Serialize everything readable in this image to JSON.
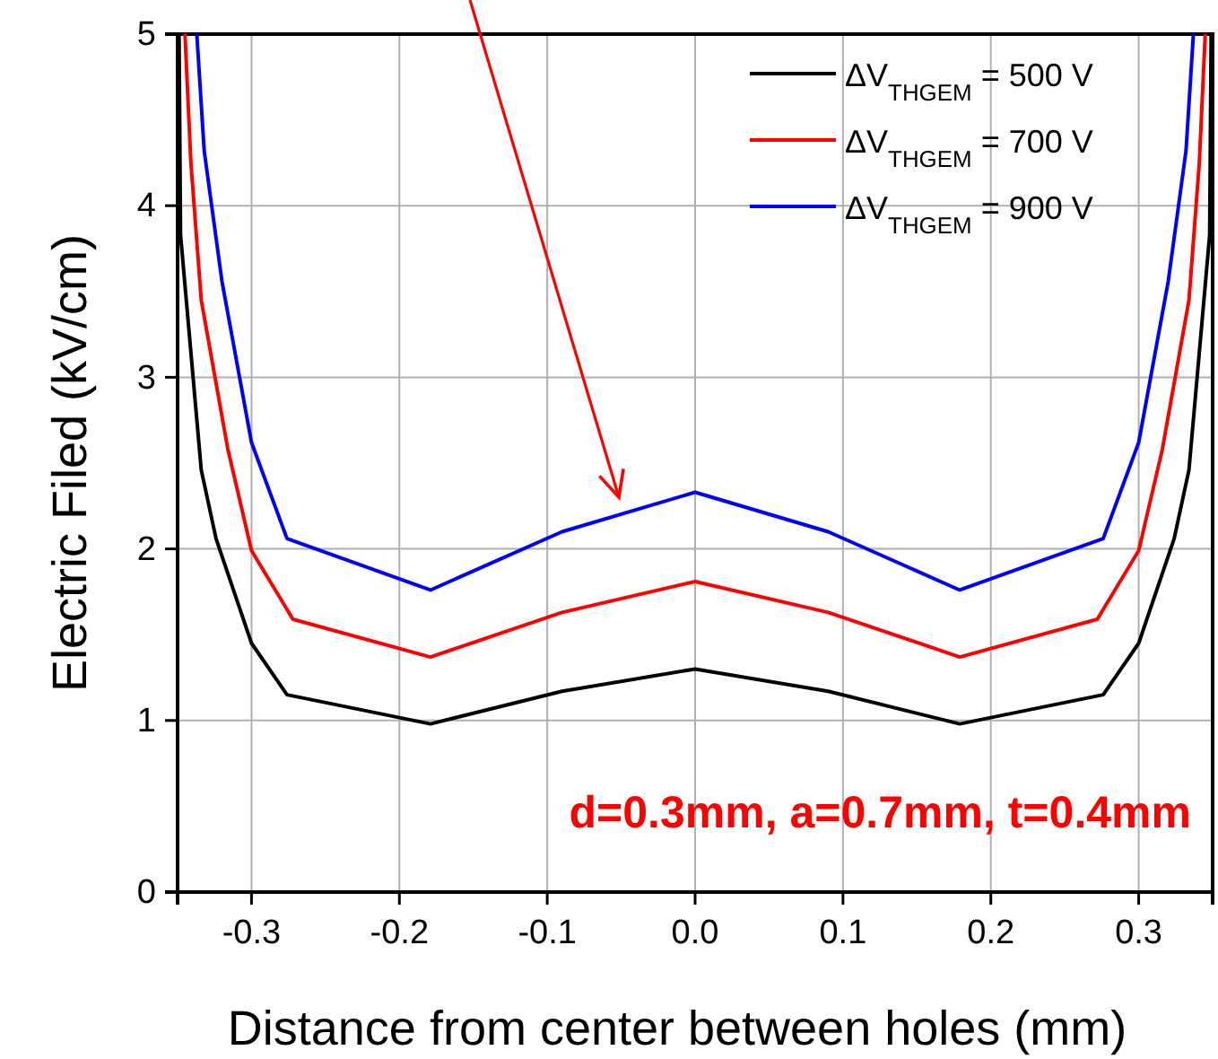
{
  "chart_data": {
    "type": "line",
    "xlabel": "Distance from center between holes (mm)",
    "ylabel": "Electric Filed (kV/cm)",
    "annotations": [
      "d=0.3mm, a=0.7mm, t=0.4mm"
    ],
    "xlim": [
      -0.35,
      0.35
    ],
    "ylim": [
      0,
      5
    ],
    "xticks": [
      -0.3,
      -0.2,
      -0.1,
      {
        "value": 0,
        "label": "0.0"
      },
      0.1,
      0.2,
      0.3
    ],
    "yticks": [
      0,
      1,
      2,
      3,
      4,
      5
    ],
    "grid": true,
    "legend": "top right",
    "marker": "none",
    "line_style": "solid",
    "series": [
      {
        "name": "ΔV$_{THGEM}$ = 500 V",
        "color": "#000000",
        "x": [
          -0.349,
          -0.348,
          -0.334,
          -0.324,
          -0.3,
          -0.276,
          -0.179,
          -0.09,
          0,
          0.09,
          0.179,
          0.276,
          0.3,
          0.324,
          0.334,
          0.348,
          0.349
        ],
        "values": [
          5,
          3.83,
          2.46,
          2.06,
          1.45,
          1.15,
          0.98,
          1.17,
          1.3,
          1.17,
          0.98,
          1.15,
          1.45,
          2.06,
          2.46,
          3.83,
          5
        ]
      },
      {
        "name": "ΔV$_{THGEM}$ = 700 V",
        "color": "#ff0000",
        "x": [
          -0.345,
          -0.341,
          -0.334,
          -0.316,
          -0.3,
          -0.272,
          -0.179,
          -0.09,
          0,
          0.09,
          0.179,
          0.272,
          0.3,
          0.316,
          0.334,
          0.341,
          0.345
        ],
        "values": [
          5,
          4.25,
          3.45,
          2.58,
          1.99,
          1.59,
          1.37,
          1.63,
          1.81,
          1.63,
          1.37,
          1.59,
          1.99,
          2.58,
          3.45,
          4.25,
          5
        ]
      },
      {
        "name": "ΔV$_{THGEM}$ = 900 V",
        "color": "#0000ff",
        "x": [
          -0.337,
          -0.332,
          -0.32,
          -0.3,
          -0.276,
          -0.179,
          -0.09,
          0,
          0.09,
          0.179,
          0.276,
          0.3,
          0.32,
          0.332,
          0.337
        ],
        "values": [
          5,
          4.32,
          3.56,
          2.62,
          2.06,
          1.76,
          2.1,
          2.33,
          2.1,
          1.76,
          2.06,
          2.62,
          3.56,
          4.32,
          5
        ]
      }
    ]
  }
}
